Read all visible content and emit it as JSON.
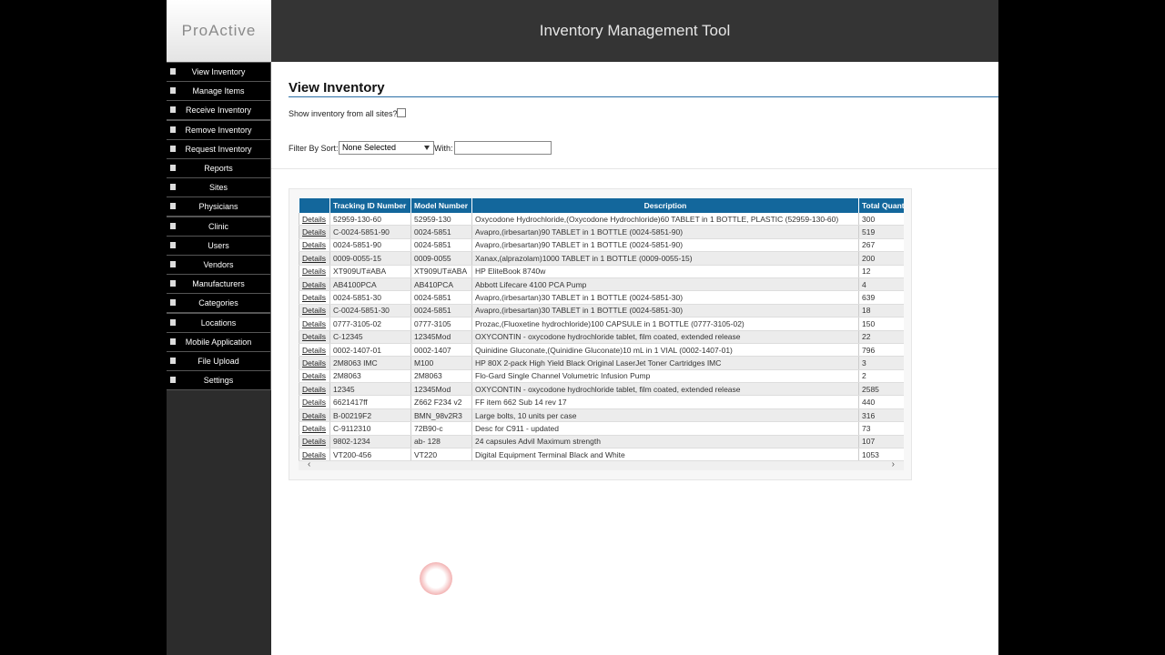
{
  "header": {
    "logo": "ProActive",
    "title": "Inventory Management Tool"
  },
  "nav": [
    "View Inventory",
    "Manage Items",
    "Receive Inventory",
    "Remove Inventory",
    "Request Inventory",
    "Reports",
    "Sites",
    "Physicians",
    "Clinic",
    "Users",
    "Vendors",
    "Manufacturers",
    "Categories",
    "Locations",
    "Mobile Application",
    "File Upload",
    "Settings"
  ],
  "page": {
    "title": "View Inventory",
    "show_all_label": "Show inventory from all sites?",
    "filter_label": "Filter By Sort:",
    "filter_select": "None Selected",
    "with_label": "With:"
  },
  "table": {
    "columns": [
      "",
      "Tracking ID Number",
      "Model Number",
      "Description",
      "Total Quantity"
    ],
    "rows": [
      [
        "Details",
        "52959-130-60",
        "52959-130",
        "Oxycodone Hydrochloride,(Oxycodone Hydrochloride)60 TABLET in 1 BOTTLE, PLASTIC (52959-130-60)",
        300
      ],
      [
        "Details",
        "C-0024-5851-90",
        "0024-5851",
        "Avapro,(irbesartan)90 TABLET in 1 BOTTLE (0024-5851-90)",
        519
      ],
      [
        "Details",
        "0024-5851-90",
        "0024-5851",
        "Avapro,(irbesartan)90 TABLET in 1 BOTTLE (0024-5851-90)",
        267
      ],
      [
        "Details",
        "0009-0055-15",
        "0009-0055",
        "Xanax,(alprazolam)1000 TABLET in 1 BOTTLE (0009-0055-15)",
        200
      ],
      [
        "Details",
        "XT909UT#ABA",
        "XT909UT#ABA",
        "HP EliteBook 8740w",
        12
      ],
      [
        "Details",
        "AB4100PCA",
        "AB410PCA",
        "Abbott Lifecare 4100 PCA Pump",
        4
      ],
      [
        "Details",
        "0024-5851-30",
        "0024-5851",
        "Avapro,(irbesartan)30 TABLET in 1 BOTTLE (0024-5851-30)",
        639
      ],
      [
        "Details",
        "C-0024-5851-30",
        "0024-5851",
        "Avapro,(irbesartan)30 TABLET in 1 BOTTLE (0024-5851-30)",
        18
      ],
      [
        "Details",
        "0777-3105-02",
        "0777-3105",
        "Prozac,(Fluoxetine hydrochloride)100 CAPSULE in 1 BOTTLE (0777-3105-02)",
        150
      ],
      [
        "Details",
        "C-12345",
        "12345Mod",
        "OXYCONTIN - oxycodone hydrochloride tablet, film coated, extended release",
        22
      ],
      [
        "Details",
        "0002-1407-01",
        "0002-1407",
        "Quinidine Gluconate,(Quinidine Gluconate)10 mL in 1 VIAL (0002-1407-01)",
        796
      ],
      [
        "Details",
        "2M8063 IMC",
        "M100",
        "HP 80X 2-pack High Yield Black Original LaserJet Toner Cartridges IMC",
        3
      ],
      [
        "Details",
        "2M8063",
        "2M8063",
        "Flo-Gard Single Channel Volumetric Infusion Pump",
        2
      ],
      [
        "Details",
        "12345",
        "12345Mod",
        "OXYCONTIN - oxycodone hydrochloride tablet, film coated, extended release",
        2585
      ],
      [
        "Details",
        "6621417ff",
        "Z662 F234 v2",
        "FF item 662 Sub 14 rev 17",
        440
      ],
      [
        "Details",
        "B-00219F2",
        "BMN_98v2R3",
        "Large bolts, 10 units per case",
        316
      ],
      [
        "Details",
        "C-9112310",
        "72B90-c",
        "Desc for C911 - updated",
        73
      ],
      [
        "Details",
        "9802-1234",
        "ab- 128",
        "24 capsules Advil Maximum strength",
        107
      ],
      [
        "Details",
        "VT200-456",
        "VT220",
        "Digital Equipment Terminal Black and White",
        1053
      ]
    ]
  }
}
